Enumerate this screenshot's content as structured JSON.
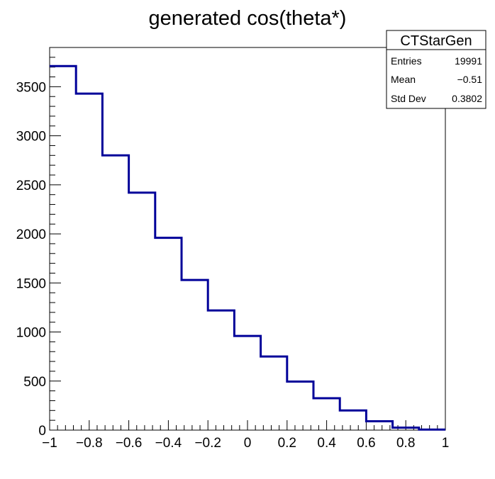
{
  "chart_data": {
    "type": "bar",
    "style": "step-histogram",
    "title": "generated cos(theta*)",
    "xlabel": "",
    "ylabel": "",
    "xlim": [
      -1,
      1
    ],
    "ylim": [
      0,
      3900
    ],
    "bin_edges": [
      -1,
      -0.8667,
      -0.7333,
      -0.6,
      -0.4667,
      -0.3333,
      -0.2,
      -0.0667,
      0.0667,
      0.2,
      0.3333,
      0.4667,
      0.6,
      0.7333,
      0.8667,
      1
    ],
    "values": [
      3710,
      3430,
      2800,
      2420,
      1960,
      1530,
      1220,
      960,
      750,
      495,
      325,
      200,
      90,
      25,
      5
    ],
    "line_color": "#000099",
    "x_ticks": [
      -1,
      -0.8,
      -0.6,
      -0.4,
      -0.2,
      0,
      0.2,
      0.4,
      0.6,
      0.8,
      1
    ],
    "x_tick_labels": [
      "−1",
      "−0.8",
      "−0.6",
      "−0.4",
      "−0.2",
      "0",
      "0.2",
      "0.4",
      "0.6",
      "0.8",
      "1"
    ],
    "y_ticks": [
      0,
      500,
      1000,
      1500,
      2000,
      2500,
      3000,
      3500
    ],
    "y_tick_labels": [
      "0",
      "500",
      "1000",
      "1500",
      "2000",
      "2500",
      "3000",
      "3500"
    ],
    "legend": "top-right",
    "stats_box": {
      "name": "CTStarGen",
      "rows": [
        {
          "label": "Entries",
          "value": "19991"
        },
        {
          "label": "Mean",
          "value": "−0.51"
        },
        {
          "label": "Std Dev",
          "value": "0.3802"
        }
      ]
    }
  }
}
